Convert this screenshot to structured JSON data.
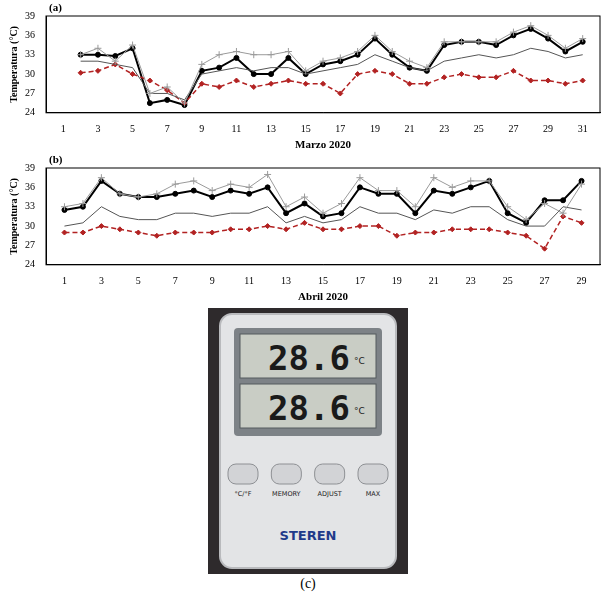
{
  "chart_data": [
    {
      "type": "line",
      "panel_label": "(a)",
      "x_label": "Marzo 2020",
      "y_label": "Temperatura (°C)",
      "xlim": [
        0,
        32
      ],
      "xticks": [
        1,
        3,
        5,
        7,
        9,
        11,
        13,
        15,
        17,
        19,
        21,
        23,
        25,
        27,
        29,
        31
      ],
      "ylim": [
        24,
        39
      ],
      "yticks": [
        24,
        27,
        30,
        33,
        36,
        39
      ],
      "grid": false,
      "x": [
        2,
        3,
        4,
        5,
        6,
        7,
        8,
        9,
        10,
        11,
        12,
        13,
        14,
        15,
        16,
        17,
        18,
        19,
        20,
        21,
        22,
        23,
        24,
        25,
        26,
        27,
        28,
        29,
        30,
        31
      ],
      "series": [
        {
          "color": "#9a9a9a",
          "marker": "cross",
          "line_style": "solid",
          "values": [
            33,
            34,
            32,
            34.5,
            27,
            28,
            25.5,
            31.5,
            33,
            33.5,
            33,
            33,
            33.5,
            30.5,
            32,
            32.5,
            33.5,
            36,
            33.5,
            32,
            31,
            35,
            35,
            35,
            35,
            36.5,
            37.5,
            36,
            34,
            35.5
          ]
        },
        {
          "color": "#555555",
          "marker": "none",
          "line_style": "solid",
          "values": [
            32,
            32,
            31.5,
            31,
            27,
            27,
            26,
            30,
            30.5,
            31,
            30.5,
            31,
            31,
            30,
            30.5,
            31,
            31.5,
            33,
            32,
            31,
            30.5,
            32,
            32.5,
            33,
            32.5,
            33,
            34,
            33.5,
            32.5,
            33
          ]
        },
        {
          "color": "#b22222",
          "marker": "diamond",
          "line_style": "dashed",
          "values": [
            30.2,
            30.5,
            31.5,
            30,
            29,
            27.5,
            25.5,
            28.5,
            28,
            29,
            28,
            28.5,
            29,
            28.5,
            28.5,
            27,
            30,
            30.5,
            30,
            28.5,
            28.5,
            29.5,
            30,
            29.5,
            29.5,
            30.5,
            29,
            29,
            28.5,
            29
          ]
        },
        {
          "color": "#000000",
          "marker": "circle",
          "line_style": "solid",
          "values": [
            33,
            33,
            32.8,
            34,
            25.5,
            26,
            25.2,
            30.5,
            31,
            32.5,
            30,
            30,
            32.5,
            30,
            31.5,
            32,
            33,
            35.5,
            33,
            31,
            30.5,
            34.5,
            35,
            35,
            34.5,
            36,
            37,
            35.5,
            33.5,
            35
          ]
        }
      ]
    },
    {
      "type": "line",
      "panel_label": "(b)",
      "x_label": "Abril 2020",
      "y_label": "Temperatura (°C)",
      "xlim": [
        0,
        30
      ],
      "xticks": [
        1,
        3,
        5,
        7,
        9,
        11,
        13,
        15,
        17,
        19,
        21,
        23,
        25,
        27,
        29
      ],
      "ylim": [
        24,
        39
      ],
      "yticks": [
        24,
        27,
        30,
        33,
        36,
        39
      ],
      "grid": false,
      "x": [
        1,
        2,
        3,
        4,
        5,
        6,
        7,
        8,
        9,
        10,
        11,
        12,
        13,
        14,
        15,
        16,
        17,
        18,
        19,
        20,
        21,
        22,
        23,
        24,
        25,
        26,
        27,
        28,
        29
      ],
      "series": [
        {
          "color": "#9a9a9a",
          "marker": "cross",
          "line_style": "solid",
          "values": [
            33,
            33.5,
            37.5,
            35,
            34.5,
            35,
            36.5,
            37,
            35.5,
            36.5,
            36,
            38,
            33,
            34.5,
            32,
            33.5,
            37.5,
            35.5,
            35.5,
            33,
            37.5,
            36,
            37,
            37,
            33,
            31,
            33.5,
            32,
            36.5
          ]
        },
        {
          "color": "#555555",
          "marker": "none",
          "line_style": "solid",
          "values": [
            30,
            30.5,
            33,
            31.5,
            31,
            31,
            32,
            32,
            31.5,
            32,
            32,
            33,
            30.5,
            31.5,
            30.5,
            31,
            33,
            32,
            32,
            31,
            32.5,
            32,
            33,
            33,
            31,
            30,
            30,
            33,
            32.5
          ]
        },
        {
          "color": "#b22222",
          "marker": "diamond",
          "line_style": "dashed",
          "values": [
            29,
            29,
            30,
            29.5,
            29,
            28.5,
            29,
            29,
            29,
            29.5,
            29.5,
            30,
            29.5,
            30.5,
            29.5,
            29.5,
            30,
            30,
            28.5,
            29,
            29,
            29.5,
            29.5,
            29.5,
            29,
            28.5,
            26.5,
            31.5,
            30.5
          ]
        },
        {
          "color": "#000000",
          "marker": "circle",
          "line_style": "solid",
          "values": [
            32.5,
            33,
            37,
            35,
            34.5,
            34.5,
            35,
            35.5,
            34.5,
            35.5,
            35,
            36,
            32,
            33.5,
            31.5,
            32,
            36,
            35,
            35,
            32,
            35.5,
            35,
            36,
            37,
            32,
            30.5,
            34,
            34,
            37
          ]
        }
      ]
    }
  ],
  "photo": {
    "readings": [
      {
        "value": 28.6,
        "unit": "°C"
      },
      {
        "value": 28.6,
        "unit": "°C"
      }
    ],
    "buttons": [
      "°C/°F",
      "MEMORY",
      "ADJUST",
      "MAX"
    ],
    "brand": "STEREN",
    "caption": "(c)"
  }
}
